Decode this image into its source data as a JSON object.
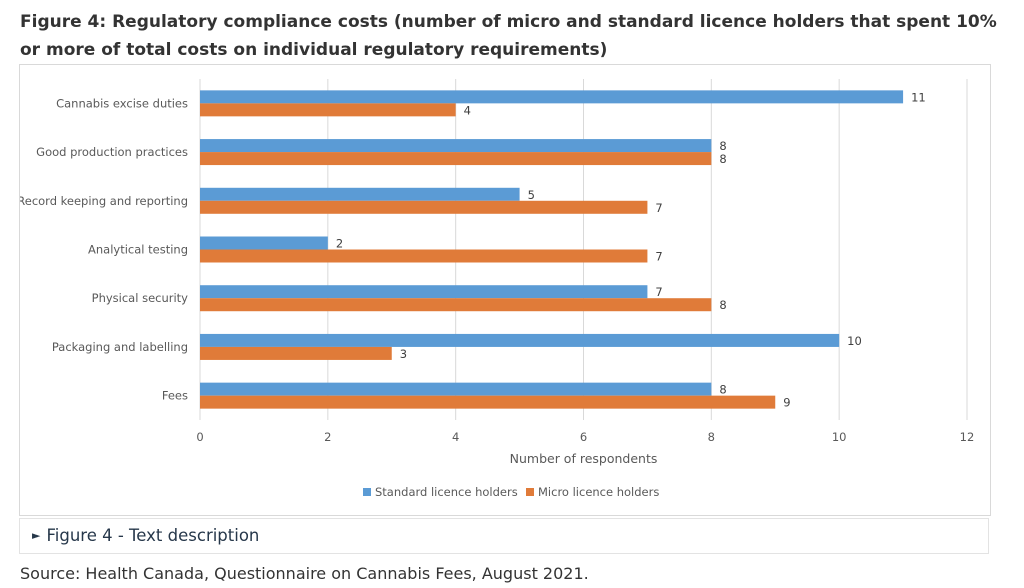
{
  "figure": {
    "title": "Figure 4: Regulatory compliance costs (number of micro and standard licence holders that spent 10% or more of total costs on individual regulatory requirements)",
    "details_label": "Figure 4 - Text description",
    "source": "Source: Health Canada, Questionnaire on Cannabis Fees, August 2021."
  },
  "chart_data": {
    "type": "bar",
    "orientation": "horizontal",
    "title": "",
    "xlabel": "Number of respondents",
    "ylabel": "",
    "xlim": [
      0,
      12
    ],
    "xticks": [
      0,
      2,
      4,
      6,
      8,
      10,
      12
    ],
    "grid": true,
    "legend_position": "bottom",
    "categories": [
      "Cannabis excise duties",
      "Good production practices",
      "Record keeping and reporting",
      "Analytical testing",
      "Physical security",
      "Packaging and labelling",
      "Fees"
    ],
    "series": [
      {
        "name": "Standard licence holders",
        "color": "#5b9bd5",
        "values": [
          11,
          8,
          5,
          2,
          7,
          10,
          8
        ]
      },
      {
        "name": "Micro licence holders",
        "color": "#e07b39",
        "values": [
          4,
          8,
          7,
          7,
          8,
          3,
          9
        ]
      }
    ]
  }
}
